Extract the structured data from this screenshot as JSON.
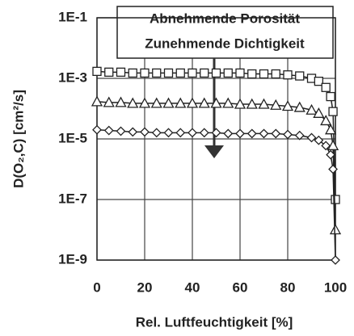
{
  "chart_data": {
    "type": "line",
    "x_label": "Rel. Luftfeuchtigkeit [%]",
    "y_label": "D(O₂,C) [cm²/s]",
    "annotations": [
      "Abnehmende Porosität",
      "Zunehmende Dichtigkeit"
    ],
    "x": [
      0,
      5,
      10,
      15,
      20,
      25,
      30,
      35,
      40,
      45,
      50,
      55,
      60,
      65,
      70,
      75,
      80,
      85,
      90,
      93,
      96,
      98,
      99,
      100
    ],
    "series": [
      {
        "name": "square",
        "marker": "square",
        "color": "#222",
        "values": [
          0.0017,
          0.0016,
          0.0016,
          0.0015,
          0.0015,
          0.0015,
          0.0015,
          0.0015,
          0.0015,
          0.0015,
          0.0015,
          0.0015,
          0.0015,
          0.0014,
          0.0014,
          0.0014,
          0.0013,
          0.0012,
          0.001,
          0.0008,
          0.0005,
          0.00025,
          8e-05,
          1e-07
        ]
      },
      {
        "name": "triangle",
        "marker": "triangle",
        "color": "#222",
        "values": [
          0.00017,
          0.00016,
          0.00016,
          0.00015,
          0.00015,
          0.00015,
          0.00015,
          0.00015,
          0.00015,
          0.00015,
          0.00015,
          0.00015,
          0.00014,
          0.00014,
          0.00014,
          0.00013,
          0.00012,
          0.00011,
          9e-05,
          7e-05,
          4e-05,
          2e-05,
          6e-06,
          1e-08
        ]
      },
      {
        "name": "diamond",
        "marker": "diamond",
        "color": "#222",
        "values": [
          2e-05,
          1.9e-05,
          1.8e-05,
          1.7e-05,
          1.7e-05,
          1.6e-05,
          1.6e-05,
          1.6e-05,
          1.6e-05,
          1.6e-05,
          1.6e-05,
          1.5e-05,
          1.5e-05,
          1.5e-05,
          1.5e-05,
          1.5e-05,
          1.4e-05,
          1.3e-05,
          1.1e-05,
          9e-06,
          6e-06,
          3e-06,
          1e-06,
          1e-09
        ]
      }
    ],
    "xlim": [
      0,
      100
    ],
    "xticks": [
      0,
      20,
      40,
      60,
      80,
      100
    ],
    "ylim": [
      1e-09,
      0.1
    ],
    "log_y": true,
    "yticks": [
      {
        "value": 0.1,
        "label": "1E-1"
      },
      {
        "value": 0.001,
        "label": "1E-3"
      },
      {
        "value": 1e-05,
        "label": "1E-5"
      },
      {
        "value": 1e-07,
        "label": "1E-7"
      },
      {
        "value": 1e-09,
        "label": "1E-9"
      }
    ],
    "grid": true
  }
}
